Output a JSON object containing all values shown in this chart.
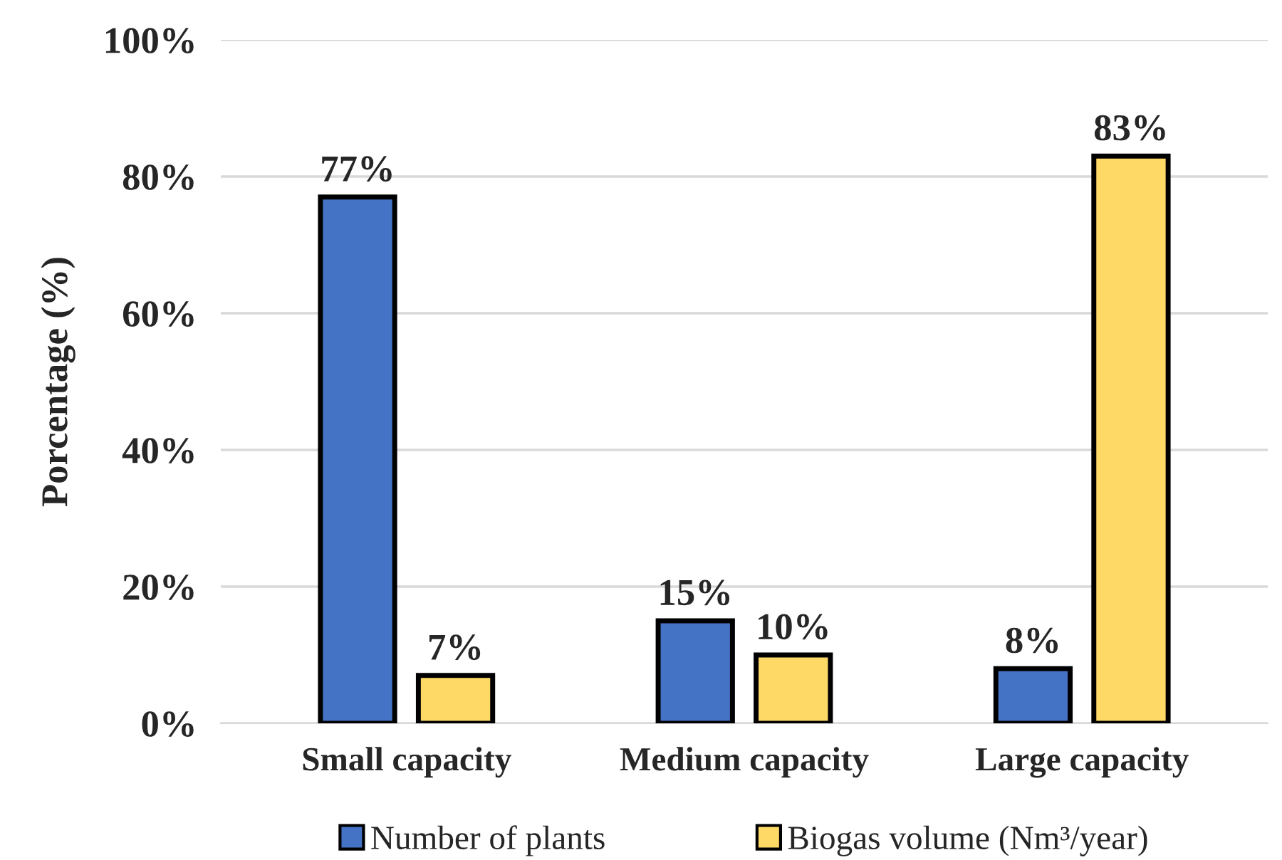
{
  "chart_data": {
    "type": "bar",
    "ylabel": "Porcentage (%)",
    "categories": [
      "Small capacity",
      "Medium capacity",
      "Large capacity"
    ],
    "series": [
      {
        "name": "Number of plants",
        "color": "#4472c4",
        "values": [
          77,
          15,
          8
        ],
        "value_labels": [
          "77%",
          "15%",
          "8%"
        ]
      },
      {
        "name": "Biogas volume (Nm³/year)",
        "color": "#ffd966",
        "values": [
          7,
          10,
          83
        ],
        "value_labels": [
          "7%",
          "10%",
          "83%"
        ]
      }
    ],
    "ylim": [
      0,
      100
    ],
    "yticks": [
      {
        "value": 0,
        "label": "0%"
      },
      {
        "value": 20,
        "label": "20%"
      },
      {
        "value": 40,
        "label": "40%"
      },
      {
        "value": 60,
        "label": "60%"
      },
      {
        "value": 80,
        "label": "80%"
      },
      {
        "value": 100,
        "label": "100%"
      }
    ],
    "grid": "y",
    "legend": "bottom"
  }
}
